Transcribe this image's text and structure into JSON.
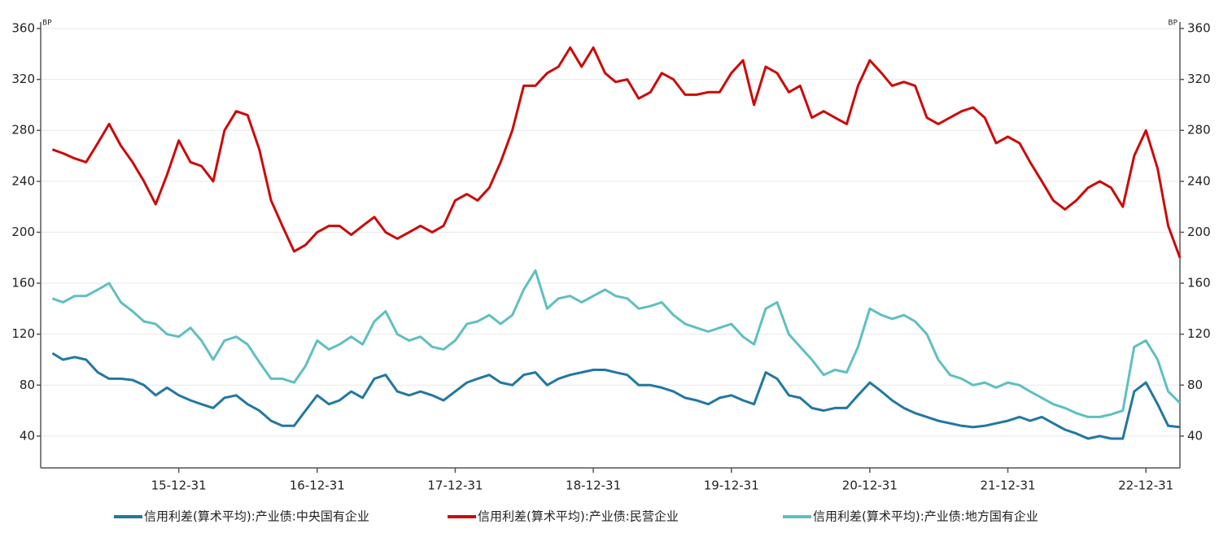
{
  "chart_data": {
    "type": "line",
    "y_unit": "BP",
    "y2_unit": "BP",
    "x": [
      "15-01-31",
      "15-02-28",
      "15-03-31",
      "15-04-30",
      "15-05-31",
      "15-06-30",
      "15-07-31",
      "15-08-31",
      "15-09-30",
      "15-10-31",
      "15-11-30",
      "15-12-31",
      "16-01-31",
      "16-02-29",
      "16-03-31",
      "16-04-30",
      "16-05-31",
      "16-06-30",
      "16-07-31",
      "16-08-31",
      "16-09-30",
      "16-10-31",
      "16-11-30",
      "16-12-31",
      "17-01-31",
      "17-02-28",
      "17-03-31",
      "17-04-30",
      "17-05-31",
      "17-06-30",
      "17-07-31",
      "17-08-31",
      "17-09-30",
      "17-10-31",
      "17-11-30",
      "17-12-31",
      "18-01-31",
      "18-02-28",
      "18-03-31",
      "18-04-30",
      "18-05-31",
      "18-06-30",
      "18-07-31",
      "18-08-31",
      "18-09-30",
      "18-10-31",
      "18-11-30",
      "18-12-31",
      "19-01-31",
      "19-02-28",
      "19-03-31",
      "19-04-30",
      "19-05-31",
      "19-06-30",
      "19-07-31",
      "19-08-31",
      "19-09-30",
      "19-10-31",
      "19-11-30",
      "19-12-31",
      "20-01-31",
      "20-02-29",
      "20-03-31",
      "20-04-30",
      "20-05-31",
      "20-06-30",
      "20-07-31",
      "20-08-31",
      "20-09-30",
      "20-10-31",
      "20-11-30",
      "20-12-31",
      "21-01-31",
      "21-02-28",
      "21-03-31",
      "21-04-30",
      "21-05-31",
      "21-06-30",
      "21-07-31",
      "21-08-31",
      "21-09-30",
      "21-10-31",
      "21-11-30",
      "21-12-31",
      "22-01-31",
      "22-02-28",
      "22-03-31",
      "22-04-30",
      "22-05-31",
      "22-06-30",
      "22-07-31",
      "22-08-31",
      "22-09-30",
      "22-10-31",
      "22-11-30",
      "22-12-31",
      "23-01-31",
      "23-02-28",
      "23-03-31"
    ],
    "xlim": [
      "14-12-31",
      "23-03-31"
    ],
    "xticks": [
      "15-12-31",
      "16-12-31",
      "17-12-31",
      "18-12-31",
      "19-12-31",
      "20-12-31",
      "21-12-31",
      "22-12-31"
    ],
    "ylim": [
      15,
      360
    ],
    "yticks": [
      40,
      80,
      120,
      160,
      200,
      240,
      280,
      320,
      360
    ],
    "y2lim": [
      15,
      360
    ],
    "y2ticks": [
      40,
      80,
      120,
      160,
      200,
      240,
      280,
      320,
      360
    ],
    "grid": true,
    "series": [
      {
        "name": "信用利差(算术平均):产业债:中央国有企业",
        "color": "#2277a2",
        "values": [
          105,
          100,
          102,
          100,
          90,
          85,
          85,
          84,
          80,
          72,
          78,
          72,
          68,
          65,
          62,
          70,
          72,
          65,
          60,
          52,
          48,
          48,
          60,
          72,
          65,
          68,
          75,
          70,
          85,
          88,
          75,
          72,
          75,
          72,
          68,
          75,
          82,
          85,
          88,
          82,
          80,
          88,
          90,
          80,
          85,
          88,
          90,
          92,
          92,
          90,
          88,
          80,
          80,
          78,
          75,
          70,
          68,
          65,
          70,
          72,
          68,
          65,
          90,
          85,
          72,
          70,
          62,
          60,
          62,
          62,
          72,
          82,
          75,
          68,
          62,
          58,
          55,
          52,
          50,
          48,
          47,
          48,
          50,
          52,
          55,
          52,
          55,
          50,
          45,
          42,
          38,
          40,
          38,
          38,
          75,
          82,
          65,
          48,
          47
        ]
      },
      {
        "name": "信用利差(算术平均):产业债:民营企业",
        "color": "#cc0a0a",
        "values": [
          265,
          262,
          258,
          255,
          270,
          285,
          268,
          255,
          240,
          222,
          245,
          272,
          255,
          252,
          240,
          280,
          295,
          292,
          265,
          225,
          205,
          185,
          190,
          200,
          205,
          205,
          198,
          205,
          212,
          200,
          195,
          200,
          205,
          200,
          205,
          225,
          230,
          225,
          235,
          255,
          280,
          315,
          315,
          325,
          330,
          345,
          330,
          345,
          325,
          318,
          320,
          305,
          310,
          325,
          320,
          308,
          308,
          310,
          310,
          325,
          335,
          300,
          330,
          325,
          310,
          315,
          290,
          295,
          290,
          285,
          315,
          335,
          325,
          315,
          318,
          315,
          290,
          285,
          290,
          295,
          298,
          290,
          270,
          275,
          270,
          255,
          240,
          225,
          218,
          225,
          235,
          240,
          235,
          220,
          260,
          280,
          250,
          205,
          180
        ]
      },
      {
        "name": "信用利差(算术平均):产业债:地方国有企业",
        "color": "#5fbfc2",
        "values": [
          148,
          145,
          150,
          150,
          155,
          160,
          145,
          138,
          130,
          128,
          120,
          118,
          125,
          115,
          100,
          115,
          118,
          112,
          98,
          85,
          85,
          82,
          95,
          115,
          108,
          112,
          118,
          112,
          130,
          138,
          120,
          115,
          118,
          110,
          108,
          115,
          128,
          130,
          135,
          128,
          135,
          155,
          170,
          140,
          148,
          150,
          145,
          150,
          155,
          150,
          148,
          140,
          142,
          145,
          135,
          128,
          125,
          122,
          125,
          128,
          118,
          112,
          140,
          145,
          120,
          110,
          100,
          88,
          92,
          90,
          110,
          140,
          135,
          132,
          135,
          130,
          120,
          100,
          88,
          85,
          80,
          82,
          78,
          82,
          80,
          75,
          70,
          65,
          62,
          58,
          55,
          55,
          57,
          60,
          110,
          115,
          100,
          75,
          66
        ]
      }
    ]
  }
}
